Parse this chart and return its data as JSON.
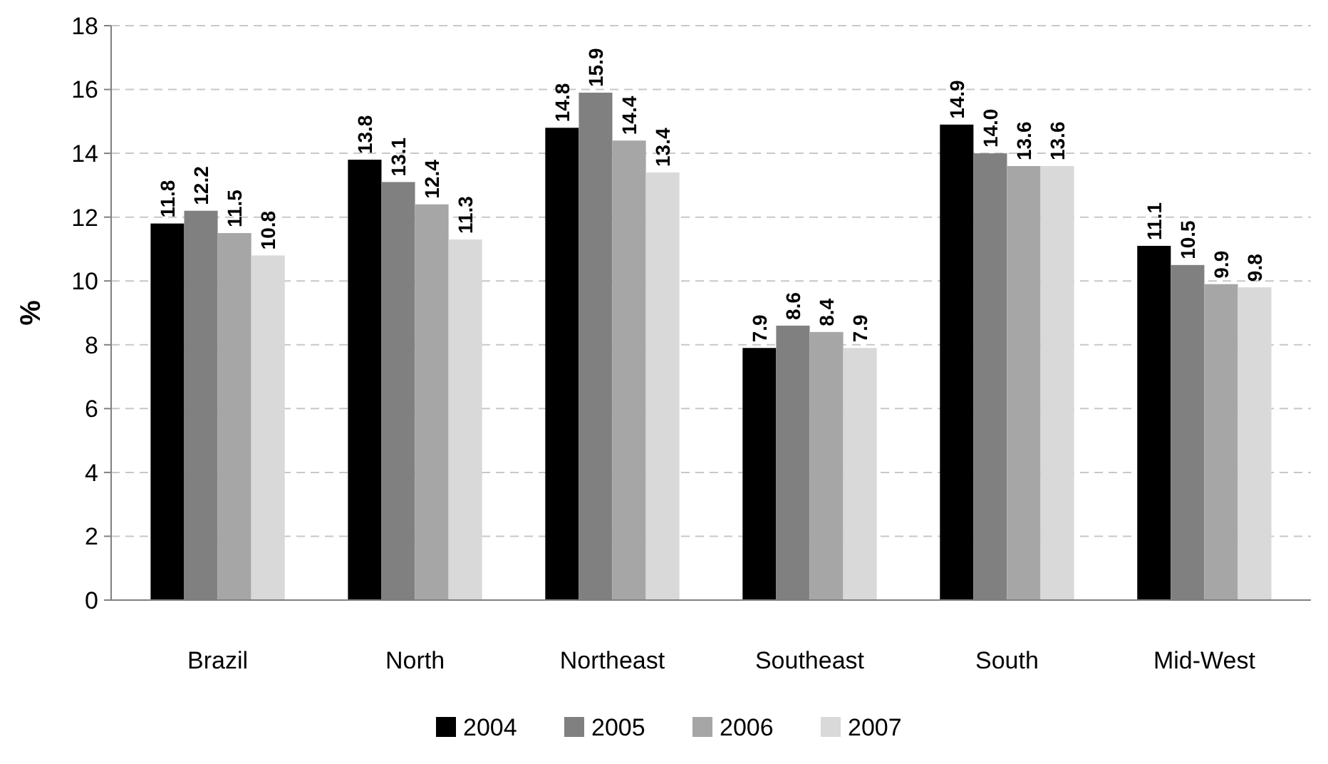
{
  "chart_data": {
    "type": "bar",
    "ylabel": "%",
    "categories": [
      "Brazil",
      "North",
      "Northeast",
      "Southeast",
      "South",
      "Mid-West"
    ],
    "ylim": [
      0,
      18
    ],
    "yticks": [
      0,
      2,
      4,
      6,
      8,
      10,
      12,
      14,
      16,
      18
    ],
    "grid": "y",
    "legend": "bottom",
    "series": [
      {
        "name": "2004",
        "color": "#000000",
        "values": [
          11.8,
          13.8,
          14.8,
          7.9,
          14.9,
          11.1
        ],
        "value_labels": [
          "11.8",
          "13.8",
          "14.8",
          "7.9",
          "14.9",
          "11.1"
        ]
      },
      {
        "name": "2005",
        "color": "#808080",
        "values": [
          12.2,
          13.1,
          15.9,
          8.6,
          14.0,
          10.5
        ],
        "value_labels": [
          "12.2",
          "13.1",
          "15.9",
          "8.6",
          "14.0",
          "10.5"
        ]
      },
      {
        "name": "2006",
        "color": "#a6a6a6",
        "values": [
          11.5,
          12.4,
          14.4,
          8.4,
          13.6,
          9.9
        ],
        "value_labels": [
          "11.5",
          "12.4",
          "14.4",
          "8.4",
          "13.6",
          "9.9"
        ]
      },
      {
        "name": "2007",
        "color": "#d9d9d9",
        "values": [
          10.8,
          11.3,
          13.4,
          7.9,
          13.6,
          9.8
        ],
        "value_labels": [
          "10.8",
          "11.3",
          "13.4",
          "7.9",
          "13.6",
          "9.8"
        ]
      }
    ]
  }
}
